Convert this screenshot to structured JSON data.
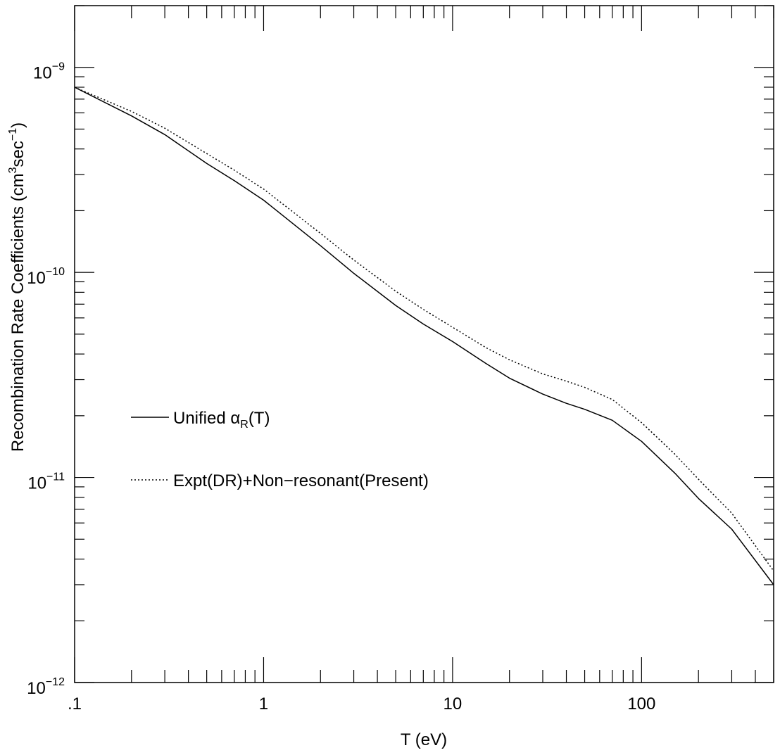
{
  "chart_data": {
    "type": "line",
    "title": "",
    "xlabel": "T (eV)",
    "ylabel_parts": {
      "lead": "Recombination Rate Coefficients (cm",
      "sup1": "3",
      "mid": "sec",
      "sup2": "−1",
      "tail": ")"
    },
    "x_scale": "log",
    "y_scale": "log",
    "xlim": [
      0.1,
      500
    ],
    "ylim": [
      1e-12,
      2e-09
    ],
    "grid": false,
    "legend_placement": "center-left",
    "x_tick_labels": [
      {
        "value": 0.1,
        "label": ".1"
      },
      {
        "value": 1,
        "label": "1"
      },
      {
        "value": 10,
        "label": "10"
      },
      {
        "value": 100,
        "label": "100"
      }
    ],
    "y_tick_labels": [
      {
        "value": 1e-09,
        "base": "10",
        "exp": "−9"
      },
      {
        "value": 1e-10,
        "base": "10",
        "exp": "−10"
      },
      {
        "value": 1e-11,
        "base": "10",
        "exp": "−11"
      },
      {
        "value": 1e-12,
        "base": "10",
        "exp": "−12"
      }
    ],
    "series": [
      {
        "name_parts": {
          "lead": "Unified α",
          "sub": "R",
          "tail": "(T)"
        },
        "style": "solid",
        "color": "#000000",
        "x": [
          0.1,
          0.2,
          0.3,
          0.5,
          0.7,
          1,
          2,
          3,
          5,
          7,
          10,
          15,
          20,
          30,
          40,
          50,
          70,
          100,
          150,
          200,
          300,
          500
        ],
        "y": [
          8e-10,
          5.8e-10,
          4.7e-10,
          3.4e-10,
          2.8e-10,
          2.25e-10,
          1.35e-10,
          9.9e-11,
          6.9e-11,
          5.6e-11,
          4.6e-11,
          3.6e-11,
          3.05e-11,
          2.55e-11,
          2.3e-11,
          2.15e-11,
          1.9e-11,
          1.5e-11,
          1.05e-11,
          7.9e-12,
          5.6e-12,
          3e-12
        ]
      },
      {
        "name_parts": {
          "lead": "Expt(DR)+Non−resonant(Present)",
          "sub": "",
          "tail": ""
        },
        "style": "dotted",
        "color": "#000000",
        "x": [
          0.1,
          0.2,
          0.3,
          0.5,
          0.7,
          1,
          2,
          3,
          5,
          7,
          10,
          15,
          20,
          30,
          40,
          50,
          70,
          100,
          150,
          200,
          300,
          500
        ],
        "y": [
          8e-10,
          6.1e-10,
          5.05e-10,
          3.8e-10,
          3.15e-10,
          2.55e-10,
          1.55e-10,
          1.15e-10,
          8.1e-11,
          6.6e-11,
          5.4e-11,
          4.3e-11,
          3.75e-11,
          3.2e-11,
          2.95e-11,
          2.75e-11,
          2.4e-11,
          1.85e-11,
          1.3e-11,
          9.8e-12,
          6.7e-12,
          3.5e-12
        ]
      }
    ]
  }
}
